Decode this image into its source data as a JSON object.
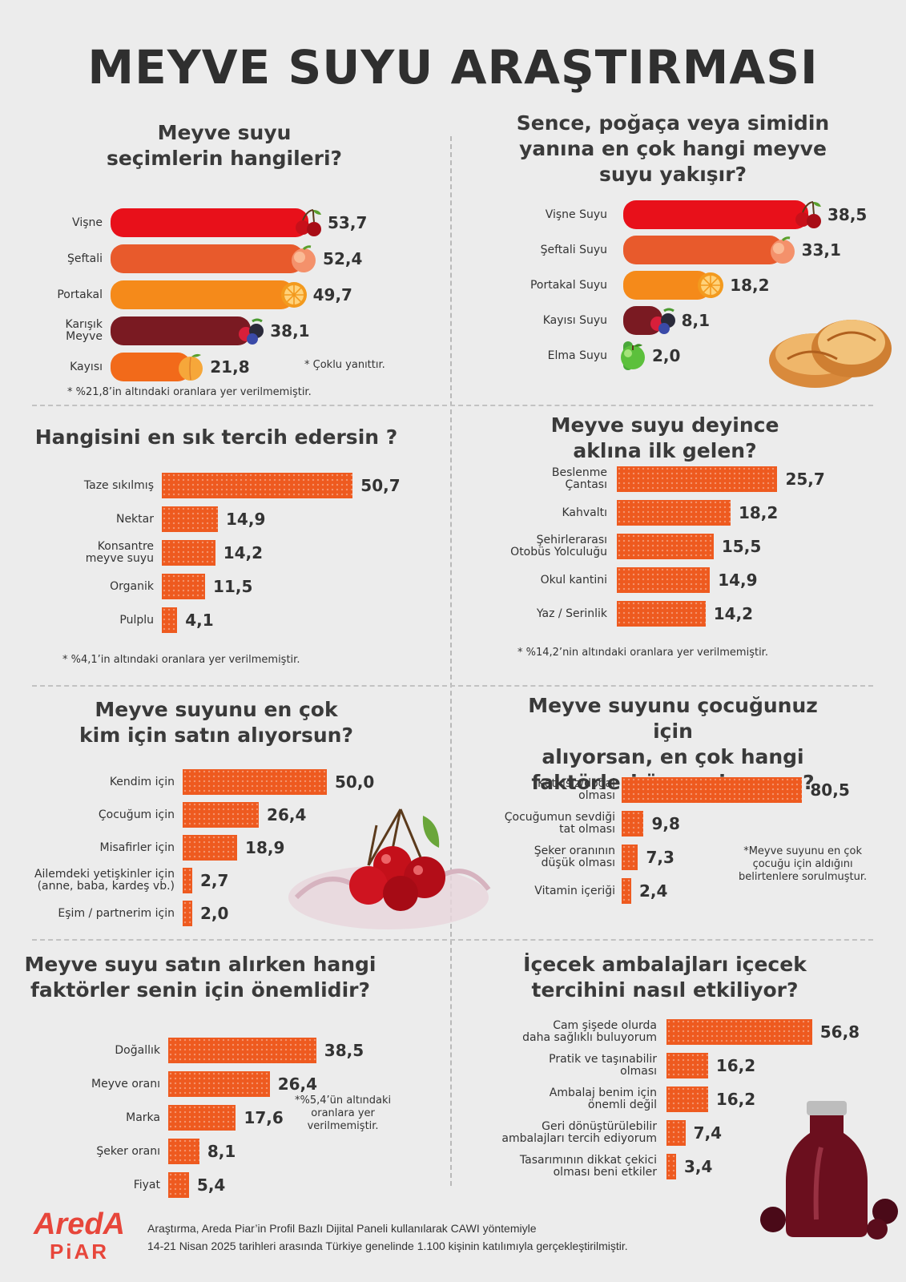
{
  "title": "MEYVE SUYU ARAŞTIRMASI",
  "colors": {
    "accent": "#ee5a1f",
    "background": "#ececec",
    "brand": "#e7463b"
  },
  "charts": [
    {
      "title": "Meyve suyu\nseçimlerin hangileri?",
      "notes": [
        "* Çoklu yanıttır.",
        "* %21,8’in altındaki oranlara yer verilmemiştir."
      ],
      "chart_data": {
        "type": "bar",
        "orientation": "horizontal",
        "categories": [
          "Vişne",
          "Şeftali",
          "Portakal",
          "Karışık\nMeyve",
          "Kayısı"
        ],
        "values": [
          53.7,
          52.4,
          49.7,
          38.1,
          21.8
        ],
        "value_labels": [
          "53,7",
          "52,4",
          "49,7",
          "38,1",
          "21,8"
        ],
        "colors": [
          "#e8101a",
          "#e85a2c",
          "#f58a1a",
          "#7a1a22",
          "#f26a1a"
        ],
        "icons": [
          "cherry-icon",
          "peach-icon",
          "orange-icon",
          "mixed-berries-icon",
          "apricot-icon"
        ]
      }
    },
    {
      "title": "Sence, poğaça veya simidin\nyanına en çok hangi meyve\nsuyu yakışır?",
      "notes": [],
      "chart_data": {
        "type": "bar",
        "orientation": "horizontal",
        "categories": [
          "Vişne Suyu",
          "Şeftali Suyu",
          "Portakal Suyu",
          "Kayısı Suyu",
          "Elma Suyu"
        ],
        "values": [
          38.5,
          33.1,
          18.2,
          8.1,
          2.0
        ],
        "value_labels": [
          "38,5",
          "33,1",
          "18,2",
          "8,1",
          "2,0"
        ],
        "colors": [
          "#e8101a",
          "#e85a2c",
          "#f58a1a",
          "#7a1a22",
          "#4aa83a"
        ],
        "icons": [
          "cherry-icon",
          "peach-icon",
          "orange-icon",
          "mixed-berries-icon",
          "apple-icon"
        ]
      }
    },
    {
      "title": "Hangisini en sık tercih edersin ?",
      "notes": [
        "* %4,1’in altındaki oranlara yer verilmemiştir."
      ],
      "chart_data": {
        "type": "bar",
        "orientation": "horizontal",
        "categories": [
          "Taze sıkılmış",
          "Nektar",
          "Konsantre\nmeyve suyu",
          "Organik",
          "Pulplu"
        ],
        "values": [
          50.7,
          14.9,
          14.2,
          11.5,
          4.1
        ],
        "value_labels": [
          "50,7",
          "14,9",
          "14,2",
          "11,5",
          "4,1"
        ]
      }
    },
    {
      "title": "Meyve suyu deyince\naklına ilk gelen?",
      "notes": [
        "* %14,2’nin altındaki oranlara yer verilmemiştir."
      ],
      "chart_data": {
        "type": "bar",
        "orientation": "horizontal",
        "categories": [
          "Beslenme\nÇantası",
          "Kahvaltı",
          "Şehirlerarası\nOtobüs Yolculuğu",
          "Okul kantini",
          "Yaz / Serinlik"
        ],
        "values": [
          25.7,
          18.2,
          15.5,
          14.9,
          14.2
        ],
        "value_labels": [
          "25,7",
          "18,2",
          "15,5",
          "14,9",
          "14,2"
        ]
      }
    },
    {
      "title": "Meyve suyunu en çok\nkim için satın alıyorsun?",
      "notes": [],
      "chart_data": {
        "type": "bar",
        "orientation": "horizontal",
        "categories": [
          "Kendim için",
          "Çocuğum için",
          "Misafirler için",
          "Ailemdeki yetişkinler için\n(anne, baba, kardeş vb.)",
          "Eşim / partnerim için"
        ],
        "values": [
          50.0,
          26.4,
          18.9,
          2.7,
          2.0
        ],
        "value_labels": [
          "50,0",
          "26,4",
          "18,9",
          "2,7",
          "2,0"
        ]
      }
    },
    {
      "title": "Meyve suyunu çocuğunuz için\nalıyorsan, en çok hangi\nfaktörleri önemsiyorsun?",
      "notes": [
        "*Meyve suyunu en çok\nçocuğu için aldığını\nbelirtenlere sorulmuştur."
      ],
      "chart_data": {
        "type": "bar",
        "orientation": "horizontal",
        "categories": [
          "Katkısız/doğal\nolması",
          "Çocuğumun sevdiği\ntat olması",
          "Şeker oranının\ndüşük olması",
          "Vitamin içeriği"
        ],
        "values": [
          80.5,
          9.8,
          7.3,
          2.4
        ],
        "value_labels": [
          "80,5",
          "9,8",
          "7,3",
          "2,4"
        ]
      }
    },
    {
      "title": "Meyve suyu satın alırken hangi\nfaktörler senin için önemlidir?",
      "notes": [
        "*%5,4’ün altındaki\noranlara yer\nverilmemiştir."
      ],
      "chart_data": {
        "type": "bar",
        "orientation": "horizontal",
        "categories": [
          "Doğallık",
          "Meyve oranı",
          "Marka",
          "Şeker oranı",
          "Fiyat"
        ],
        "values": [
          38.5,
          26.4,
          17.6,
          8.1,
          5.4
        ],
        "value_labels": [
          "38,5",
          "26,4",
          "17,6",
          "8,1",
          "5,4"
        ]
      }
    },
    {
      "title": "İçecek ambalajları içecek\ntercihini nasıl etkiliyor?",
      "notes": [],
      "chart_data": {
        "type": "bar",
        "orientation": "horizontal",
        "categories": [
          "Cam şişede olurda\ndaha sağlıklı buluyorum",
          "Pratik ve taşınabilir\nolması",
          "Ambalaj benim için\nönemli değil",
          "Geri dönüştürülebilir\nambalajları tercih ediyorum",
          "Tasarımının dikkat çekici\nolması beni etkiler"
        ],
        "values": [
          56.8,
          16.2,
          16.2,
          7.4,
          3.4
        ],
        "value_labels": [
          "56,8",
          "16,2",
          "16,2",
          "7,4",
          "3,4"
        ]
      }
    }
  ],
  "logo": {
    "line1": "AredA",
    "line2": "PiAR"
  },
  "footer": [
    "Araştırma, Areda Piar’in Profil Bazlı Dijital Paneli kullanılarak CAWI yöntemiyle",
    "14-21 Nisan 2025 tarihleri arasında Türkiye genelinde 1.100 kişinin katılımıyla gerçekleştirilmiştir."
  ]
}
